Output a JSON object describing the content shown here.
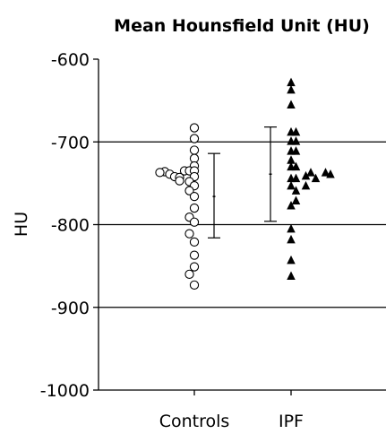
{
  "chart_data": {
    "type": "scatter",
    "title": "Mean Hounsfield Unit (HU)",
    "xlabel": "",
    "ylabel": "HU",
    "ylim": [
      -1000,
      -600
    ],
    "yticks": [
      -600,
      -700,
      -800,
      -900,
      -1000
    ],
    "ytick_labels": [
      "-600",
      "-700",
      "-800",
      "-900",
      "-1000"
    ],
    "grid_lines_y": [
      -700,
      -800,
      -900
    ],
    "categories": [
      "Controls",
      "IPF"
    ],
    "series": [
      {
        "category": "Controls",
        "marker": "open-circle",
        "points": [
          {
            "offset": 0,
            "value": -683
          },
          {
            "offset": 0,
            "value": -696
          },
          {
            "offset": 0,
            "value": -710
          },
          {
            "offset": 0,
            "value": -720
          },
          {
            "offset": 0,
            "value": -729
          },
          {
            "offset": -2,
            "value": -735
          },
          {
            "offset": -1,
            "value": -735
          },
          {
            "offset": 0,
            "value": -735
          },
          {
            "offset": -6,
            "value": -736
          },
          {
            "offset": -7,
            "value": -737
          },
          {
            "offset": -5,
            "value": -739
          },
          {
            "offset": -4,
            "value": -742
          },
          {
            "offset": 0,
            "value": -742
          },
          {
            "offset": -3,
            "value": -743
          },
          {
            "offset": -3,
            "value": -747
          },
          {
            "offset": -1,
            "value": -748
          },
          {
            "offset": 0,
            "value": -753
          },
          {
            "offset": -1,
            "value": -759
          },
          {
            "offset": 0,
            "value": -766
          },
          {
            "offset": 0,
            "value": -780
          },
          {
            "offset": -1,
            "value": -791
          },
          {
            "offset": 0,
            "value": -797
          },
          {
            "offset": -1,
            "value": -811
          },
          {
            "offset": 0,
            "value": -821
          },
          {
            "offset": 0,
            "value": -837
          },
          {
            "offset": 0,
            "value": -851
          },
          {
            "offset": -1,
            "value": -860
          },
          {
            "offset": 0,
            "value": -873
          }
        ],
        "mean": -766,
        "error_bar": [
          -816,
          -714
        ]
      },
      {
        "category": "IPF",
        "marker": "filled-triangle",
        "points": [
          {
            "offset": 0,
            "value": -628
          },
          {
            "offset": 0,
            "value": -637
          },
          {
            "offset": 0,
            "value": -655
          },
          {
            "offset": 0,
            "value": -688
          },
          {
            "offset": 1,
            "value": -688
          },
          {
            "offset": 0,
            "value": -699
          },
          {
            "offset": 1,
            "value": -699
          },
          {
            "offset": 0,
            "value": -711
          },
          {
            "offset": 1,
            "value": -711
          },
          {
            "offset": 0,
            "value": -722
          },
          {
            "offset": 0,
            "value": -730
          },
          {
            "offset": 1,
            "value": -730
          },
          {
            "offset": 4,
            "value": -737
          },
          {
            "offset": 7,
            "value": -737
          },
          {
            "offset": 8,
            "value": -739
          },
          {
            "offset": 3,
            "value": -741
          },
          {
            "offset": 5,
            "value": -744
          },
          {
            "offset": 0,
            "value": -744
          },
          {
            "offset": 1,
            "value": -744
          },
          {
            "offset": 0,
            "value": -753
          },
          {
            "offset": 3,
            "value": -753
          },
          {
            "offset": 1,
            "value": -759
          },
          {
            "offset": 1,
            "value": -771
          },
          {
            "offset": 0,
            "value": -777
          },
          {
            "offset": 0,
            "value": -805
          },
          {
            "offset": 0,
            "value": -818
          },
          {
            "offset": 0,
            "value": -843
          },
          {
            "offset": 0,
            "value": -862
          }
        ],
        "mean": -739,
        "error_bar": [
          -796,
          -682
        ]
      }
    ]
  }
}
